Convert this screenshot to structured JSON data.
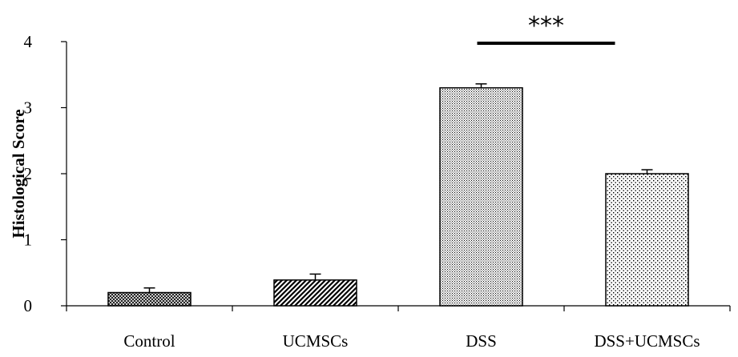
{
  "chart_data": {
    "type": "bar",
    "title": "",
    "xlabel": "",
    "ylabel": "Histological Score",
    "ylim": [
      0,
      4
    ],
    "yticks": [
      0,
      1,
      2,
      3,
      4
    ],
    "categories": [
      "Control",
      "UCMSCs",
      "DSS",
      "DSS+UCMSCs"
    ],
    "values": [
      0.2,
      0.39,
      3.3,
      2.0
    ],
    "errors": [
      0.07,
      0.09,
      0.06,
      0.06
    ],
    "patterns": [
      "crosshatch-dense",
      "diagonal-stripes",
      "fine-dots",
      "coarse-dots"
    ],
    "grid": false,
    "legend": "none",
    "significance": {
      "label": "***",
      "between": [
        "DSS",
        "DSS+UCMSCs"
      ]
    }
  }
}
